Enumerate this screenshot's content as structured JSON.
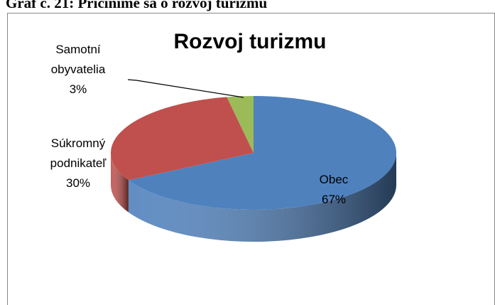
{
  "caption": "Graf č. 21: Pričiníme sa o rozvoj turizmu",
  "chart_data": {
    "type": "pie",
    "title": "Rozvoj turizmu",
    "categories": [
      "Obec",
      "Súkromný podnikateľ",
      "Samotní obyvatelia"
    ],
    "values": [
      67,
      30,
      3
    ],
    "value_labels": [
      "67%",
      "30%",
      "3%"
    ],
    "colors": [
      "#4f81bd",
      "#c0504d",
      "#9bbb59"
    ]
  }
}
